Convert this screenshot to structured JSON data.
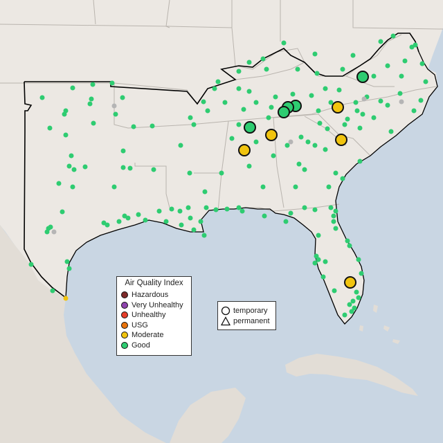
{
  "colors": {
    "water": "#c9d6e3",
    "land": "#ece8e3",
    "state_border": "#b9b4ae",
    "region_outline": "#000000",
    "marker_stroke": "#111111",
    "hazardous": "#7e2a2a",
    "very_unhealthy": "#8e44ad",
    "unhealthy": "#e53e2a",
    "usg": "#e8730c",
    "moderate": "#f1c40f",
    "good": "#2ecc71"
  },
  "aqi_legend": {
    "title": "Air Quality Index",
    "items": [
      {
        "label": "Hazardous",
        "color": "#7e2a2a"
      },
      {
        "label": "Very Unhealthy",
        "color": "#8e44ad"
      },
      {
        "label": "Unhealthy",
        "color": "#e53e2a"
      },
      {
        "label": "USG",
        "color": "#e8730c"
      },
      {
        "label": "Moderate",
        "color": "#f1c40f"
      },
      {
        "label": "Good",
        "color": "#2ecc71"
      }
    ]
  },
  "shape_legend": {
    "items": [
      {
        "label": "temporary",
        "icon": "circle-icon"
      },
      {
        "label": "permanent",
        "icon": "triangle-icon"
      }
    ]
  }
}
